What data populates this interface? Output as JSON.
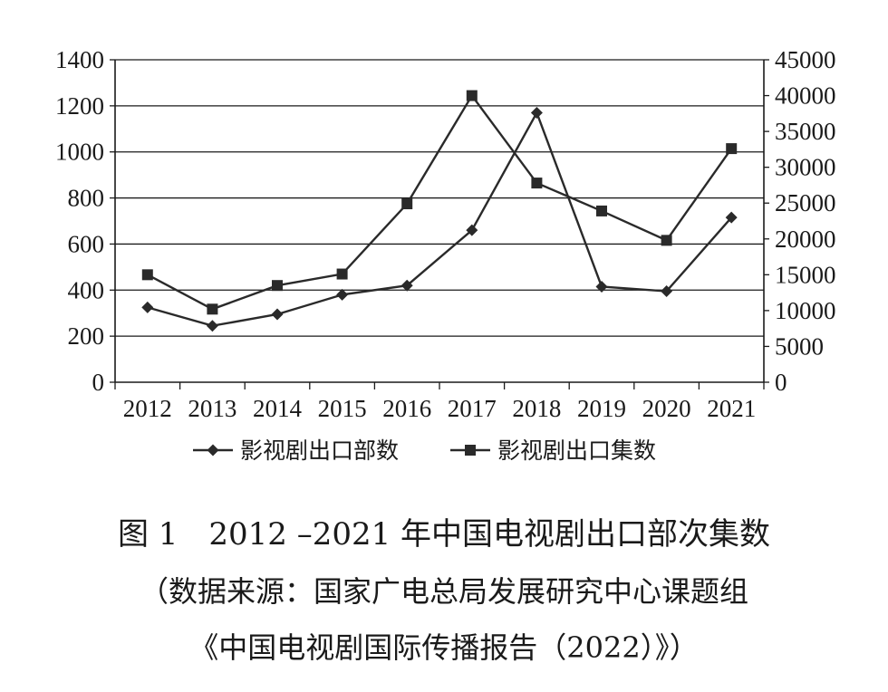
{
  "chart_data": {
    "type": "line",
    "categories": [
      "2012",
      "2013",
      "2014",
      "2015",
      "2016",
      "2017",
      "2018",
      "2019",
      "2020",
      "2021"
    ],
    "y_left": {
      "ylim": [
        0,
        1400
      ],
      "ticks": [
        "0",
        "200",
        "400",
        "600",
        "800",
        "1000",
        "1200",
        "1400"
      ]
    },
    "y_right": {
      "ylim": [
        0,
        45000
      ],
      "ticks": [
        "0",
        "5000",
        "10000",
        "15000",
        "20000",
        "25000",
        "30000",
        "35000",
        "40000",
        "45000"
      ]
    },
    "series": [
      {
        "name": "影视剧出口部数",
        "axis": "left",
        "marker": "diamond",
        "values": [
          325,
          245,
          295,
          380,
          420,
          660,
          1170,
          415,
          395,
          715
        ]
      },
      {
        "name": "影视剧出口集数",
        "axis": "right",
        "marker": "square",
        "values": [
          15000,
          10200,
          13500,
          15100,
          24900,
          40000,
          27800,
          23900,
          19800,
          32600
        ]
      }
    ],
    "grid": "horizontal",
    "legend_position": "bottom"
  },
  "caption": {
    "title": "图 1　2012 –2021 年中国电视剧出口部次集数",
    "source_line1": "（数据来源：国家广电总局发展研究中心课题组",
    "source_line2": "《中国电视剧国际传播报告（2022）》）"
  },
  "colors": {
    "line": "#2a2a2a",
    "grid": "#1a1a1a",
    "background": "#ffffff"
  }
}
